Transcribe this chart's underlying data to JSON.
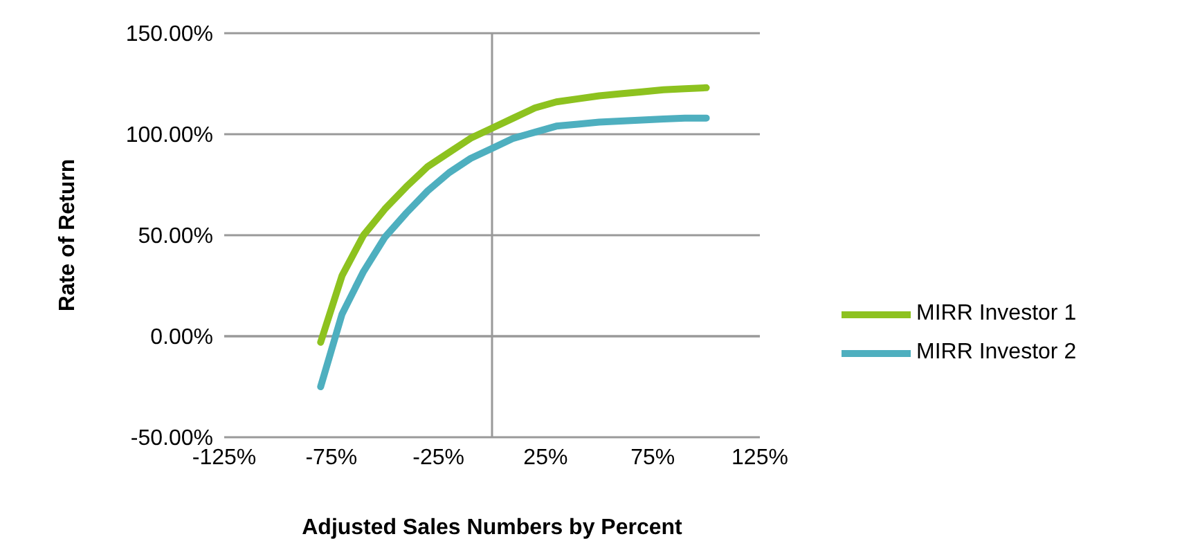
{
  "chart_data": {
    "type": "line",
    "xlabel": "Adjusted Sales Numbers by Percent",
    "ylabel": "Rate of Return",
    "x": [
      -80,
      -70,
      -60,
      -50,
      -40,
      -30,
      -20,
      -10,
      0,
      10,
      20,
      30,
      40,
      50,
      60,
      70,
      80,
      90,
      100
    ],
    "series": [
      {
        "name": "MIRR Investor 1",
        "color": "#8dc21f",
        "values": [
          -3,
          30,
          50,
          63,
          74,
          84,
          91,
          98,
          103,
          108,
          113,
          116,
          117.5,
          119,
          120,
          121,
          122,
          122.5,
          123
        ]
      },
      {
        "name": "MIRR Investor 2",
        "color": "#4eafbf",
        "values": [
          -25,
          11,
          32,
          49,
          61,
          72,
          81,
          88,
          93,
          98,
          101,
          104,
          105,
          106,
          106.5,
          107,
          107.5,
          108,
          108
        ]
      }
    ],
    "xlim": [
      -125,
      125
    ],
    "xticks": [
      {
        "value": -125,
        "label": "-125%"
      },
      {
        "value": -75,
        "label": "-75%"
      },
      {
        "value": -25,
        "label": "-25%"
      },
      {
        "value": 25,
        "label": "25%"
      },
      {
        "value": 75,
        "label": "75%"
      },
      {
        "value": 125,
        "label": "125%"
      }
    ],
    "ylim": [
      -50,
      150
    ],
    "yticks": [
      {
        "value": -50,
        "label": "-50.00%"
      },
      {
        "value": 0,
        "label": "0.00%"
      },
      {
        "value": 50,
        "label": "50.00%"
      },
      {
        "value": 100,
        "label": "100.00%"
      },
      {
        "value": 150,
        "label": "150.00%"
      }
    ],
    "grid": "y",
    "legend": "right",
    "marker": "none",
    "line_style": "solid"
  }
}
